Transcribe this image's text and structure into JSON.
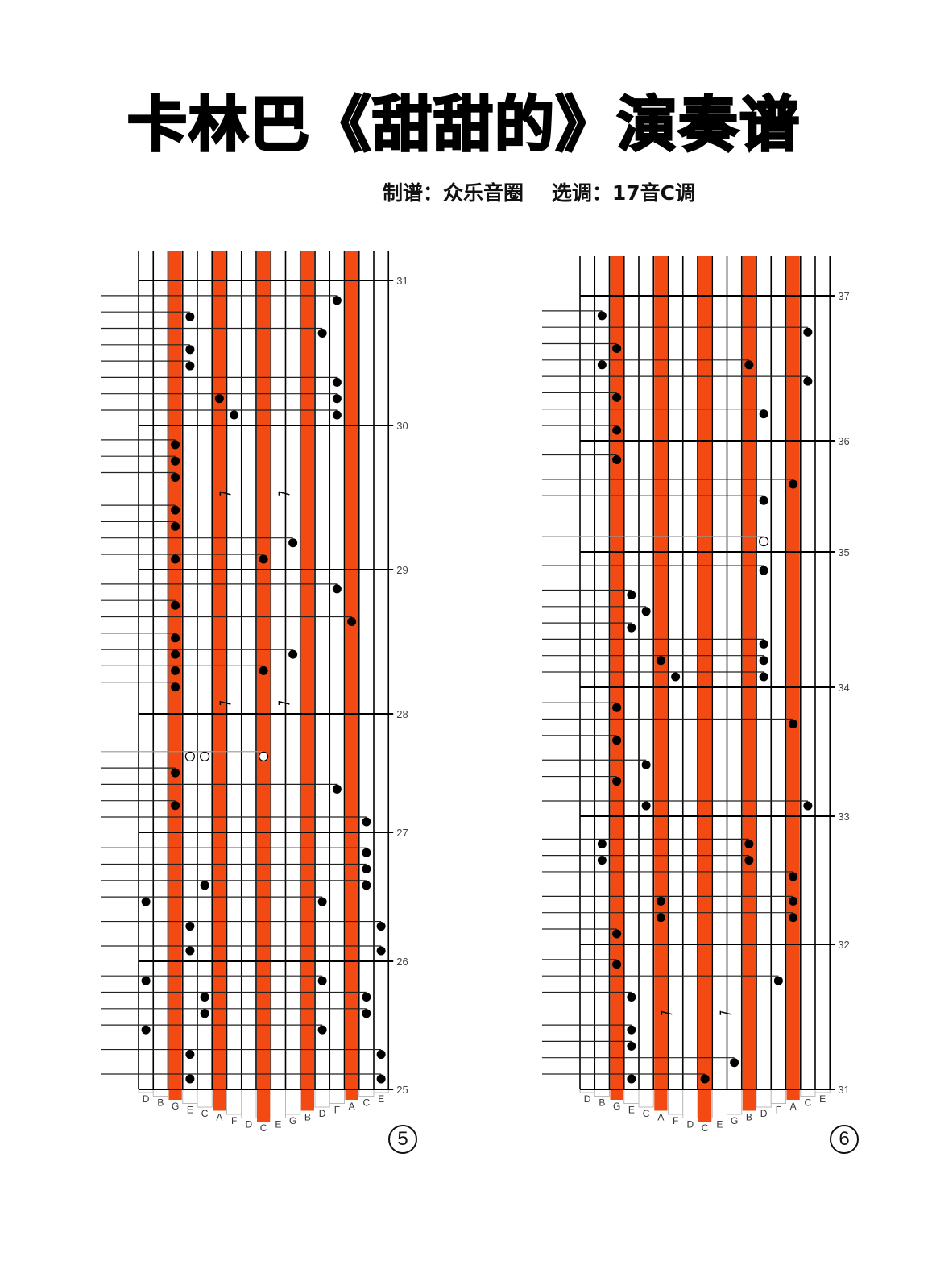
{
  "title": "卡林巴《甜甜的》演奏谱",
  "subtitle": "制谱：众乐音圈    选调：17音C调",
  "colors": {
    "accent_tine": "#f24a12",
    "note": "#000000"
  },
  "instrument": {
    "keys": [
      "D",
      "B",
      "G",
      "E",
      "C",
      "A",
      "F",
      "D",
      "C",
      "E",
      "G",
      "B",
      "D",
      "F",
      "A",
      "C",
      "E"
    ],
    "highlighted_key_indices": [
      2,
      5,
      8,
      11,
      14
    ]
  },
  "pages": [
    {
      "page_number": "5",
      "measures": [
        "25",
        "26",
        "27",
        "28",
        "29",
        "30",
        "31"
      ],
      "notes": [
        {
          "m": 25,
          "b": 0,
          "k": [
            3,
            16
          ]
        },
        {
          "m": 25,
          "b": 1.5,
          "k": [
            3,
            16
          ]
        },
        {
          "m": 25,
          "b": 3,
          "k": [
            0,
            12
          ]
        },
        {
          "m": 25,
          "b": 4,
          "k": [
            4,
            15
          ]
        },
        {
          "m": 25,
          "b": 5,
          "k": [
            4,
            15
          ]
        },
        {
          "m": 25,
          "b": 6,
          "k": [
            0,
            12
          ]
        },
        {
          "m": 26,
          "b": 0,
          "k": [
            3,
            16
          ]
        },
        {
          "m": 26,
          "b": 1.5,
          "k": [
            3,
            16
          ]
        },
        {
          "m": 26,
          "b": 3,
          "k": [
            0,
            12
          ]
        },
        {
          "m": 26,
          "b": 4,
          "k": [
            4,
            15
          ]
        },
        {
          "m": 26,
          "b": 5,
          "k": [
            15
          ]
        },
        {
          "m": 26,
          "b": 6,
          "k": [
            15
          ]
        },
        {
          "m": 27,
          "b": 0,
          "k": [
            15
          ]
        },
        {
          "m": 27,
          "b": 1,
          "k": [
            2
          ]
        },
        {
          "m": 27,
          "b": 2,
          "k": [
            13
          ]
        },
        {
          "m": 27,
          "b": 3,
          "k": [
            2
          ]
        },
        {
          "m": 27,
          "b": 4,
          "k": [
            3,
            4,
            8
          ],
          "type": "half"
        },
        {
          "m": 28,
          "b": 0,
          "k": [
            5,
            9
          ],
          "type": "rest"
        },
        {
          "m": 28,
          "b": 1,
          "k": [
            2
          ]
        },
        {
          "m": 28,
          "b": 2,
          "k": [
            2,
            8
          ]
        },
        {
          "m": 28,
          "b": 3,
          "k": [
            2,
            10
          ]
        },
        {
          "m": 28,
          "b": 4,
          "k": [
            2
          ]
        },
        {
          "m": 28,
          "b": 5,
          "k": [
            14
          ]
        },
        {
          "m": 28,
          "b": 6,
          "k": [
            2
          ]
        },
        {
          "m": 28,
          "b": 7,
          "k": [
            13
          ]
        },
        {
          "m": 29,
          "b": 0,
          "k": [
            2,
            8
          ]
        },
        {
          "m": 29,
          "b": 1,
          "k": [
            10
          ]
        },
        {
          "m": 29,
          "b": 2,
          "k": [
            2
          ]
        },
        {
          "m": 29,
          "b": 3,
          "k": [
            2
          ]
        },
        {
          "m": 29,
          "b": 4,
          "k": [
            5,
            9
          ],
          "type": "rest"
        },
        {
          "m": 29,
          "b": 5,
          "k": [
            2
          ]
        },
        {
          "m": 29,
          "b": 6,
          "k": [
            2
          ]
        },
        {
          "m": 29,
          "b": 7,
          "k": [
            2
          ]
        },
        {
          "m": 30,
          "b": 0,
          "k": [
            6,
            13
          ]
        },
        {
          "m": 30,
          "b": 1,
          "k": [
            5,
            13
          ]
        },
        {
          "m": 30,
          "b": 2,
          "k": [
            13
          ]
        },
        {
          "m": 30,
          "b": 3,
          "k": [
            3
          ]
        },
        {
          "m": 30,
          "b": 4,
          "k": [
            3
          ]
        },
        {
          "m": 30,
          "b": 5,
          "k": [
            12
          ]
        },
        {
          "m": 30,
          "b": 6,
          "k": [
            3
          ]
        },
        {
          "m": 30,
          "b": 7,
          "k": [
            13
          ]
        }
      ]
    },
    {
      "page_number": "6",
      "measures": [
        "31",
        "32",
        "33",
        "34",
        "35",
        "36",
        "37"
      ],
      "notes": [
        {
          "m": 31,
          "b": 0,
          "k": [
            3,
            8
          ]
        },
        {
          "m": 31,
          "b": 1,
          "k": [
            10
          ]
        },
        {
          "m": 31,
          "b": 2,
          "k": [
            3
          ]
        },
        {
          "m": 31,
          "b": 3,
          "k": [
            3
          ]
        },
        {
          "m": 31,
          "b": 4,
          "k": [
            5,
            9
          ],
          "type": "rest"
        },
        {
          "m": 31,
          "b": 5,
          "k": [
            3
          ]
        },
        {
          "m": 31,
          "b": 6,
          "k": [
            13
          ]
        },
        {
          "m": 31,
          "b": 7,
          "k": [
            2
          ]
        },
        {
          "m": 32,
          "b": 0,
          "k": [
            2
          ]
        },
        {
          "m": 32,
          "b": 1,
          "k": [
            5,
            14
          ]
        },
        {
          "m": 32,
          "b": 2,
          "k": [
            5,
            14
          ]
        },
        {
          "m": 32,
          "b": 3.5,
          "k": [
            14
          ]
        },
        {
          "m": 32,
          "b": 4.5,
          "k": [
            1,
            11
          ]
        },
        {
          "m": 32,
          "b": 5.5,
          "k": [
            1,
            11
          ]
        },
        {
          "m": 33,
          "b": 0,
          "k": [
            4,
            15
          ]
        },
        {
          "m": 33,
          "b": 1.5,
          "k": [
            2
          ]
        },
        {
          "m": 33,
          "b": 2.5,
          "k": [
            4
          ]
        },
        {
          "m": 33,
          "b": 4,
          "k": [
            2
          ]
        },
        {
          "m": 33,
          "b": 5,
          "k": [
            14
          ]
        },
        {
          "m": 33,
          "b": 6,
          "k": [
            2
          ]
        },
        {
          "m": 34,
          "b": 0,
          "k": [
            6,
            12
          ]
        },
        {
          "m": 34,
          "b": 1,
          "k": [
            5,
            12
          ]
        },
        {
          "m": 34,
          "b": 2,
          "k": [
            12
          ]
        },
        {
          "m": 34,
          "b": 3,
          "k": [
            3
          ]
        },
        {
          "m": 34,
          "b": 4,
          "k": [
            4
          ]
        },
        {
          "m": 34,
          "b": 5,
          "k": [
            3
          ]
        },
        {
          "m": 34,
          "b": 6.5,
          "k": [
            12
          ]
        },
        {
          "m": 35,
          "b": 0,
          "k": [
            12
          ],
          "type": "half"
        },
        {
          "m": 35,
          "b": 2.5,
          "k": [
            12
          ]
        },
        {
          "m": 35,
          "b": 3.5,
          "k": [
            14
          ]
        },
        {
          "m": 35,
          "b": 5,
          "k": [
            2
          ]
        },
        {
          "m": 36,
          "b": 0,
          "k": [
            2
          ]
        },
        {
          "m": 36,
          "b": 1,
          "k": [
            12
          ]
        },
        {
          "m": 36,
          "b": 2,
          "k": [
            2
          ]
        },
        {
          "m": 36,
          "b": 3,
          "k": [
            15
          ]
        },
        {
          "m": 36,
          "b": 4,
          "k": [
            1,
            11
          ]
        },
        {
          "m": 36,
          "b": 5,
          "k": [
            2
          ]
        },
        {
          "m": 36,
          "b": 6,
          "k": [
            15
          ]
        },
        {
          "m": 36,
          "b": 7,
          "k": [
            1
          ]
        }
      ]
    }
  ]
}
